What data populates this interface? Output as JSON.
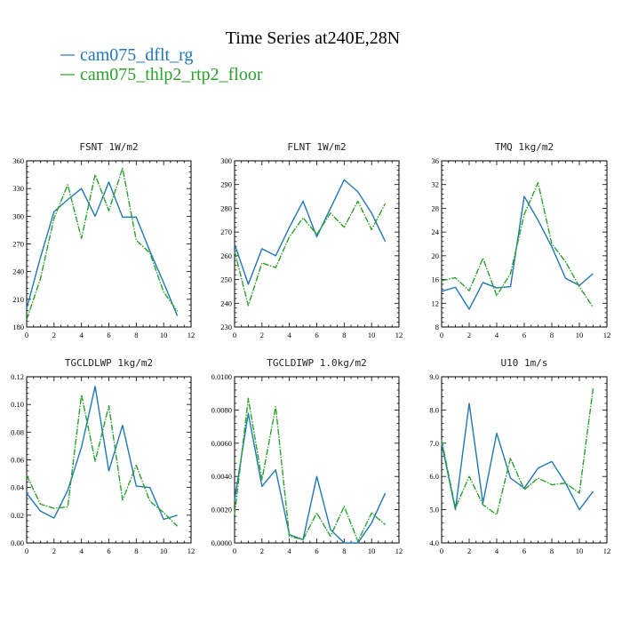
{
  "figure": {
    "title": "Time Series at240E,28N"
  },
  "legend": [
    {
      "label": "cam075_dflt_rg",
      "color": "#1f77b4",
      "dashed": false
    },
    {
      "label": "cam075_thlp2_rtp2_floor",
      "color": "#2ca02c",
      "dashed": true
    }
  ],
  "chart_data": [
    {
      "type": "line",
      "title": "FSNT   1W/m2",
      "x": [
        0,
        1,
        2,
        3,
        4,
        5,
        6,
        7,
        8,
        9,
        10,
        11
      ],
      "xlim": [
        0,
        12
      ],
      "xticks": [
        "0",
        "2",
        "4",
        "6",
        "8",
        "10",
        "12"
      ],
      "ylim": [
        180,
        360
      ],
      "yticks": [
        "180",
        "210",
        "240",
        "270",
        "300",
        "330",
        "360"
      ],
      "series": [
        {
          "name": "cam075_dflt_rg",
          "values": [
            200,
            255,
            305,
            318,
            330,
            300,
            337,
            299,
            299,
            262,
            228,
            192
          ]
        },
        {
          "name": "cam075_thlp2_rtp2_floor",
          "values": [
            188,
            232,
            298,
            334,
            276,
            345,
            306,
            352,
            274,
            260,
            218,
            197
          ]
        }
      ]
    },
    {
      "type": "line",
      "title": "FLNT   1W/m2",
      "x": [
        0,
        1,
        2,
        3,
        4,
        5,
        6,
        7,
        8,
        9,
        10,
        11
      ],
      "xlim": [
        0,
        12
      ],
      "xticks": [
        "0",
        "2",
        "4",
        "6",
        "8",
        "10",
        "12"
      ],
      "ylim": [
        230,
        300
      ],
      "yticks": [
        "230",
        "240",
        "250",
        "260",
        "270",
        "280",
        "290",
        "300"
      ],
      "series": [
        {
          "name": "cam075_dflt_rg",
          "values": [
            265,
            248,
            263,
            260,
            272,
            283,
            268,
            280,
            292,
            287,
            278,
            266
          ]
        },
        {
          "name": "cam075_thlp2_rtp2_floor",
          "values": [
            262,
            239,
            257,
            255,
            268,
            276,
            269,
            278,
            272,
            283,
            271,
            282
          ]
        }
      ]
    },
    {
      "type": "line",
      "title": "TMQ   1kg/m2",
      "x": [
        0,
        1,
        2,
        3,
        4,
        5,
        6,
        7,
        8,
        9,
        10,
        11
      ],
      "xlim": [
        0,
        12
      ],
      "xticks": [
        "0",
        "2",
        "4",
        "6",
        "8",
        "10",
        "12"
      ],
      "ylim": [
        8,
        36
      ],
      "yticks": [
        "8",
        "12",
        "16",
        "20",
        "24",
        "28",
        "32",
        "36"
      ],
      "series": [
        {
          "name": "cam075_dflt_rg",
          "values": [
            14.0,
            14.7,
            11.0,
            15.5,
            14.6,
            14.8,
            30.0,
            26.0,
            21.5,
            16.2,
            15.0,
            17.0
          ]
        },
        {
          "name": "cam075_thlp2_rtp2_floor",
          "values": [
            15.8,
            16.3,
            14.1,
            19.6,
            13.3,
            17.0,
            27.0,
            32.3,
            22.0,
            19.0,
            14.8,
            11.3
          ]
        }
      ]
    },
    {
      "type": "line",
      "title": "TGCLDLWP   1kg/m2",
      "x": [
        0,
        1,
        2,
        3,
        4,
        5,
        6,
        7,
        8,
        9,
        10,
        11
      ],
      "xlim": [
        0,
        12
      ],
      "xticks": [
        "0",
        "2",
        "4",
        "6",
        "8",
        "10",
        "12"
      ],
      "ylim": [
        0,
        0.12
      ],
      "yticks": [
        "0.00",
        "0.02",
        "0.04",
        "0.06",
        "0.08",
        "0.10",
        "0.12"
      ],
      "series": [
        {
          "name": "cam075_dflt_rg",
          "values": [
            0.036,
            0.023,
            0.018,
            0.038,
            0.069,
            0.113,
            0.052,
            0.085,
            0.041,
            0.04,
            0.017,
            0.02
          ]
        },
        {
          "name": "cam075_thlp2_rtp2_floor",
          "values": [
            0.049,
            0.028,
            0.025,
            0.026,
            0.107,
            0.059,
            0.099,
            0.031,
            0.056,
            0.03,
            0.022,
            0.012
          ]
        }
      ]
    },
    {
      "type": "line",
      "title": "TGCLDIWP   1.0kg/m2",
      "x": [
        0,
        1,
        2,
        3,
        4,
        5,
        6,
        7,
        8,
        9,
        10,
        11
      ],
      "xlim": [
        0,
        12
      ],
      "xticks": [
        "0",
        "2",
        "4",
        "6",
        "8",
        "10",
        "12"
      ],
      "ylim": [
        0,
        0.01
      ],
      "yticks": [
        "0.0000",
        "0.0020",
        "0.0040",
        "0.0060",
        "0.0080",
        "0.0100"
      ],
      "series": [
        {
          "name": "cam075_dflt_rg",
          "values": [
            0.0026,
            0.0078,
            0.0034,
            0.0044,
            0.0005,
            0.0002,
            0.004,
            0.0008,
            0.0,
            0.0,
            0.0012,
            0.003
          ]
        },
        {
          "name": "cam075_thlp2_rtp2_floor",
          "values": [
            0.0017,
            0.0087,
            0.0038,
            0.0082,
            0.0004,
            0.0002,
            0.0018,
            0.0004,
            0.0022,
            0.0001,
            0.0018,
            0.0011
          ]
        }
      ]
    },
    {
      "type": "line",
      "title": "U10   1m/s",
      "x": [
        0,
        1,
        2,
        3,
        4,
        5,
        6,
        7,
        8,
        9,
        10,
        11
      ],
      "xlim": [
        0,
        12
      ],
      "xticks": [
        "0",
        "2",
        "4",
        "6",
        "8",
        "10",
        "12"
      ],
      "ylim": [
        4.0,
        9.0
      ],
      "yticks": [
        "4.0",
        "5.0",
        "6.0",
        "7.0",
        "8.0",
        "9.0"
      ],
      "series": [
        {
          "name": "cam075_dflt_rg",
          "values": [
            7.0,
            5.0,
            8.2,
            5.2,
            7.3,
            5.95,
            5.65,
            6.25,
            6.45,
            5.8,
            5.0,
            5.55
          ]
        },
        {
          "name": "cam075_thlp2_rtp2_floor",
          "values": [
            7.1,
            5.05,
            6.0,
            5.15,
            4.85,
            6.55,
            5.6,
            5.95,
            5.75,
            5.8,
            5.5,
            8.65
          ]
        }
      ]
    }
  ]
}
